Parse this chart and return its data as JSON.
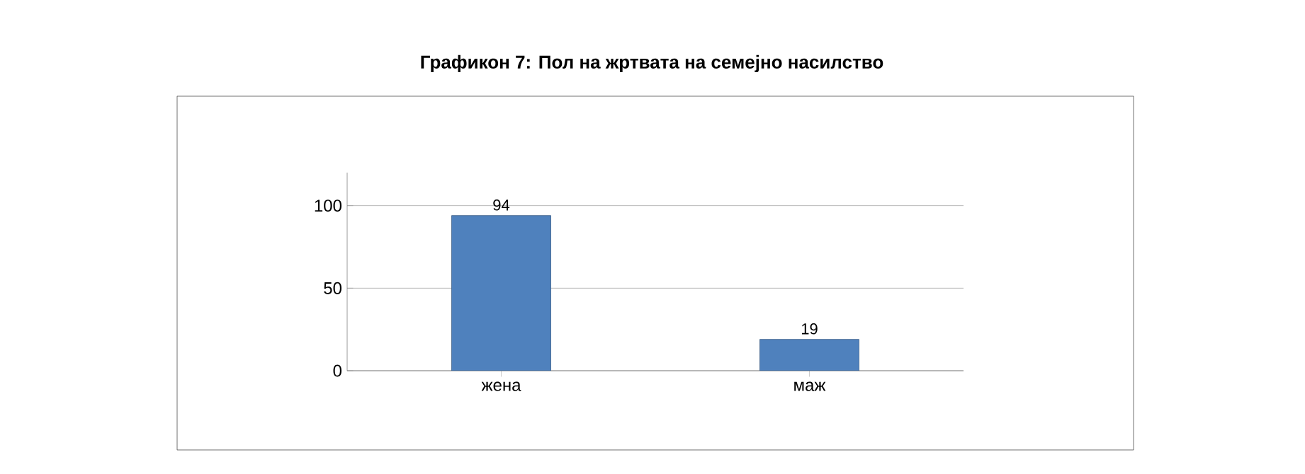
{
  "chart_data": {
    "type": "bar",
    "title": "Графикон 7: Пол на жртвата на семејно насилство",
    "categories": [
      "жена",
      "маж"
    ],
    "values": [
      94,
      19
    ],
    "color": "#4f81bd",
    "ylim": [
      0,
      120
    ],
    "yticks": [
      0,
      50,
      100
    ],
    "grid": "y",
    "data_labels": true
  }
}
